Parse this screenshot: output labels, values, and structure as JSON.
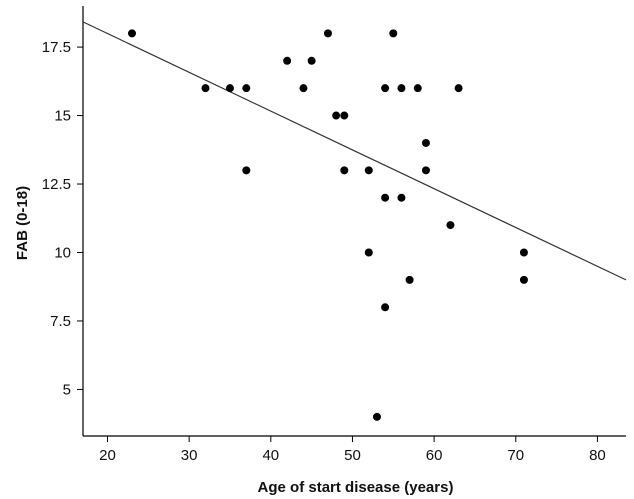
{
  "chart_data": {
    "type": "scatter",
    "title": "",
    "xlabel": "Age of start disease (years)",
    "ylabel": "FAB (0-18)",
    "xlim": [
      17,
      83.5
    ],
    "ylim": [
      3.3,
      19
    ],
    "xticks": [
      20,
      30,
      40,
      50,
      60,
      70,
      80
    ],
    "yticks": [
      5,
      7.5,
      10,
      12.5,
      15,
      17.5
    ],
    "xtick_labels": [
      "20",
      "30",
      "40",
      "50",
      "60",
      "70",
      "80"
    ],
    "ytick_labels": [
      "5",
      "7.5",
      "10",
      "12.5",
      "15",
      "17.5"
    ],
    "grid": false,
    "points": [
      {
        "x": 23,
        "y": 18
      },
      {
        "x": 32,
        "y": 16
      },
      {
        "x": 35,
        "y": 16
      },
      {
        "x": 37,
        "y": 16
      },
      {
        "x": 37,
        "y": 13
      },
      {
        "x": 42,
        "y": 17
      },
      {
        "x": 44,
        "y": 16
      },
      {
        "x": 45,
        "y": 17
      },
      {
        "x": 47,
        "y": 18
      },
      {
        "x": 48,
        "y": 15
      },
      {
        "x": 49,
        "y": 15
      },
      {
        "x": 49,
        "y": 13
      },
      {
        "x": 52,
        "y": 13
      },
      {
        "x": 52,
        "y": 10
      },
      {
        "x": 53,
        "y": 4
      },
      {
        "x": 54,
        "y": 16
      },
      {
        "x": 54,
        "y": 12
      },
      {
        "x": 54,
        "y": 8
      },
      {
        "x": 55,
        "y": 18
      },
      {
        "x": 56,
        "y": 16
      },
      {
        "x": 56,
        "y": 12
      },
      {
        "x": 57,
        "y": 9
      },
      {
        "x": 58,
        "y": 16
      },
      {
        "x": 59,
        "y": 14
      },
      {
        "x": 59,
        "y": 13
      },
      {
        "x": 62,
        "y": 11
      },
      {
        "x": 63,
        "y": 16
      },
      {
        "x": 71,
        "y": 10
      },
      {
        "x": 71,
        "y": 9
      }
    ],
    "fit_line": {
      "x": [
        17,
        83.5
      ],
      "y": [
        18.42,
        9.0
      ]
    },
    "colors": {
      "points": "#000000",
      "line": "#333333",
      "axes": "#000000"
    }
  }
}
